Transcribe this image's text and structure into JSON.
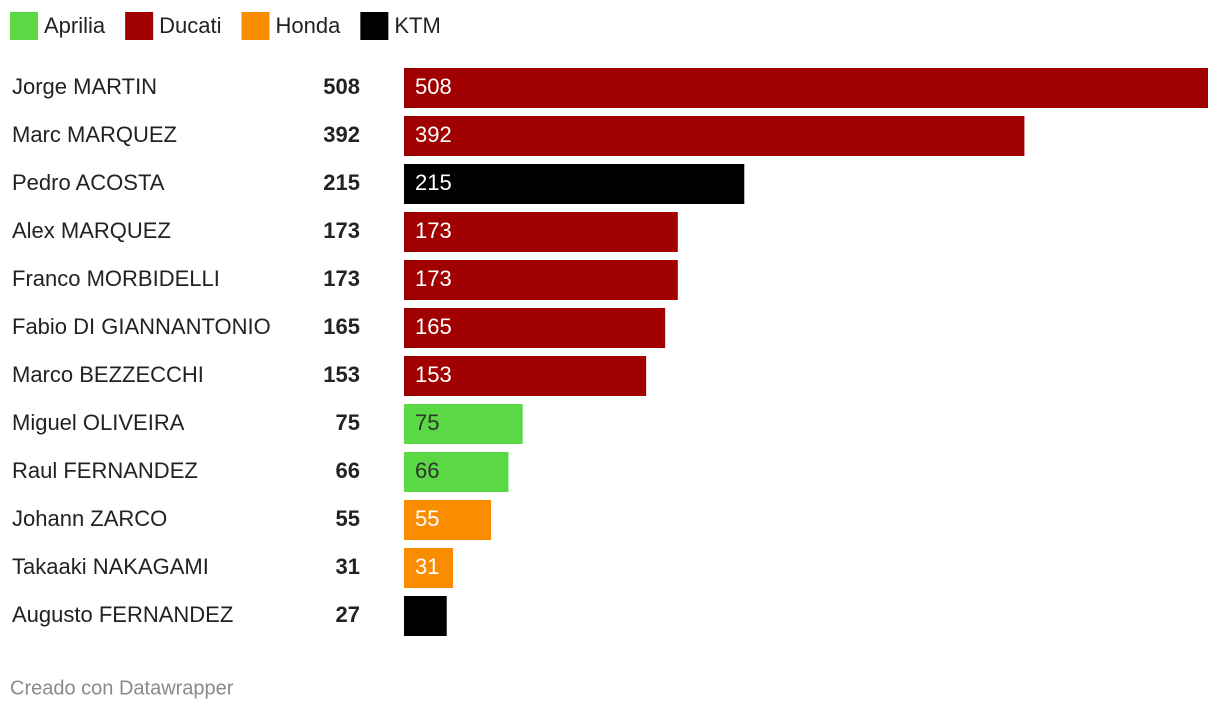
{
  "chart_data": {
    "type": "bar",
    "orientation": "horizontal",
    "categories": [
      "Jorge MARTIN",
      "Marc MARQUEZ",
      "Pedro ACOSTA",
      "Alex MARQUEZ",
      "Franco MORBIDELLI",
      "Fabio DI GIANNANTONIO",
      "Marco BEZZECCHI",
      "Miguel OLIVEIRA",
      "Raul FERNANDEZ",
      "Johann ZARCO",
      "Takaaki NAKAGAMI",
      "Augusto FERNANDEZ"
    ],
    "series": [
      {
        "name": "Aprilia",
        "color": "#5ad945",
        "values": [
          null,
          null,
          null,
          null,
          null,
          null,
          null,
          75,
          66,
          null,
          null,
          null
        ]
      },
      {
        "name": "Ducati",
        "color": "#a00000",
        "values": [
          508,
          392,
          null,
          173,
          173,
          165,
          153,
          null,
          null,
          null,
          null,
          null
        ]
      },
      {
        "name": "Honda",
        "color": "#fa8c00",
        "values": [
          null,
          null,
          null,
          null,
          null,
          null,
          null,
          null,
          null,
          55,
          31,
          null
        ]
      },
      {
        "name": "KTM",
        "color": "#000000",
        "values": [
          null,
          null,
          215,
          null,
          null,
          null,
          null,
          null,
          null,
          null,
          null,
          27
        ]
      }
    ],
    "credit": "Creado con Datawrapper"
  }
}
